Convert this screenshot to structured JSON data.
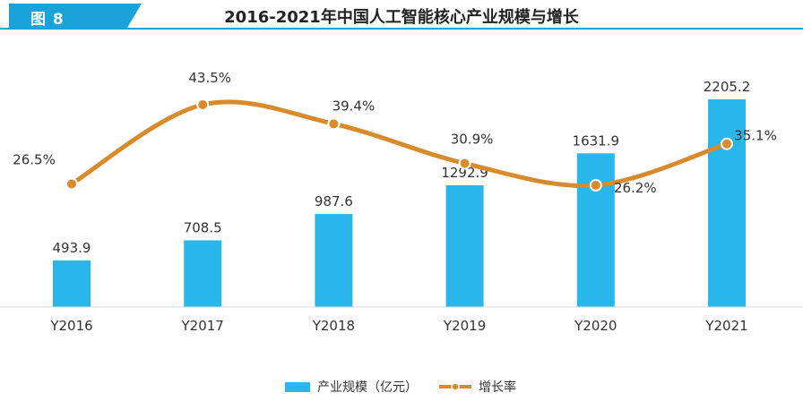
{
  "figure": {
    "badge": "图 8",
    "title": "2016-2021年中国人工智能核心产业规模与增长"
  },
  "colors": {
    "bar": "#29b6ea",
    "line": "#d98a2b",
    "accent": "#1aa3d9",
    "text": "#333333"
  },
  "chart_data": {
    "type": "bar",
    "categories": [
      "Y2016",
      "Y2017",
      "Y2018",
      "Y2019",
      "Y2020",
      "Y2021"
    ],
    "series": [
      {
        "name": "产业规模（亿元）",
        "type": "bar",
        "values": [
          493.9,
          708.5,
          987.6,
          1292.9,
          1631.9,
          2205.2
        ],
        "labels": [
          "493.9",
          "708.5",
          "987.6",
          "1292.9",
          "1631.9",
          "2205.2"
        ]
      },
      {
        "name": "增长率",
        "type": "line",
        "smooth": true,
        "values": [
          26.5,
          43.5,
          39.4,
          30.9,
          26.2,
          35.1
        ],
        "labels": [
          "26.5%",
          "43.5%",
          "39.4%",
          "30.9%",
          "26.2%",
          "35.1%"
        ]
      }
    ],
    "legend": "bottom-center",
    "grid": false
  }
}
